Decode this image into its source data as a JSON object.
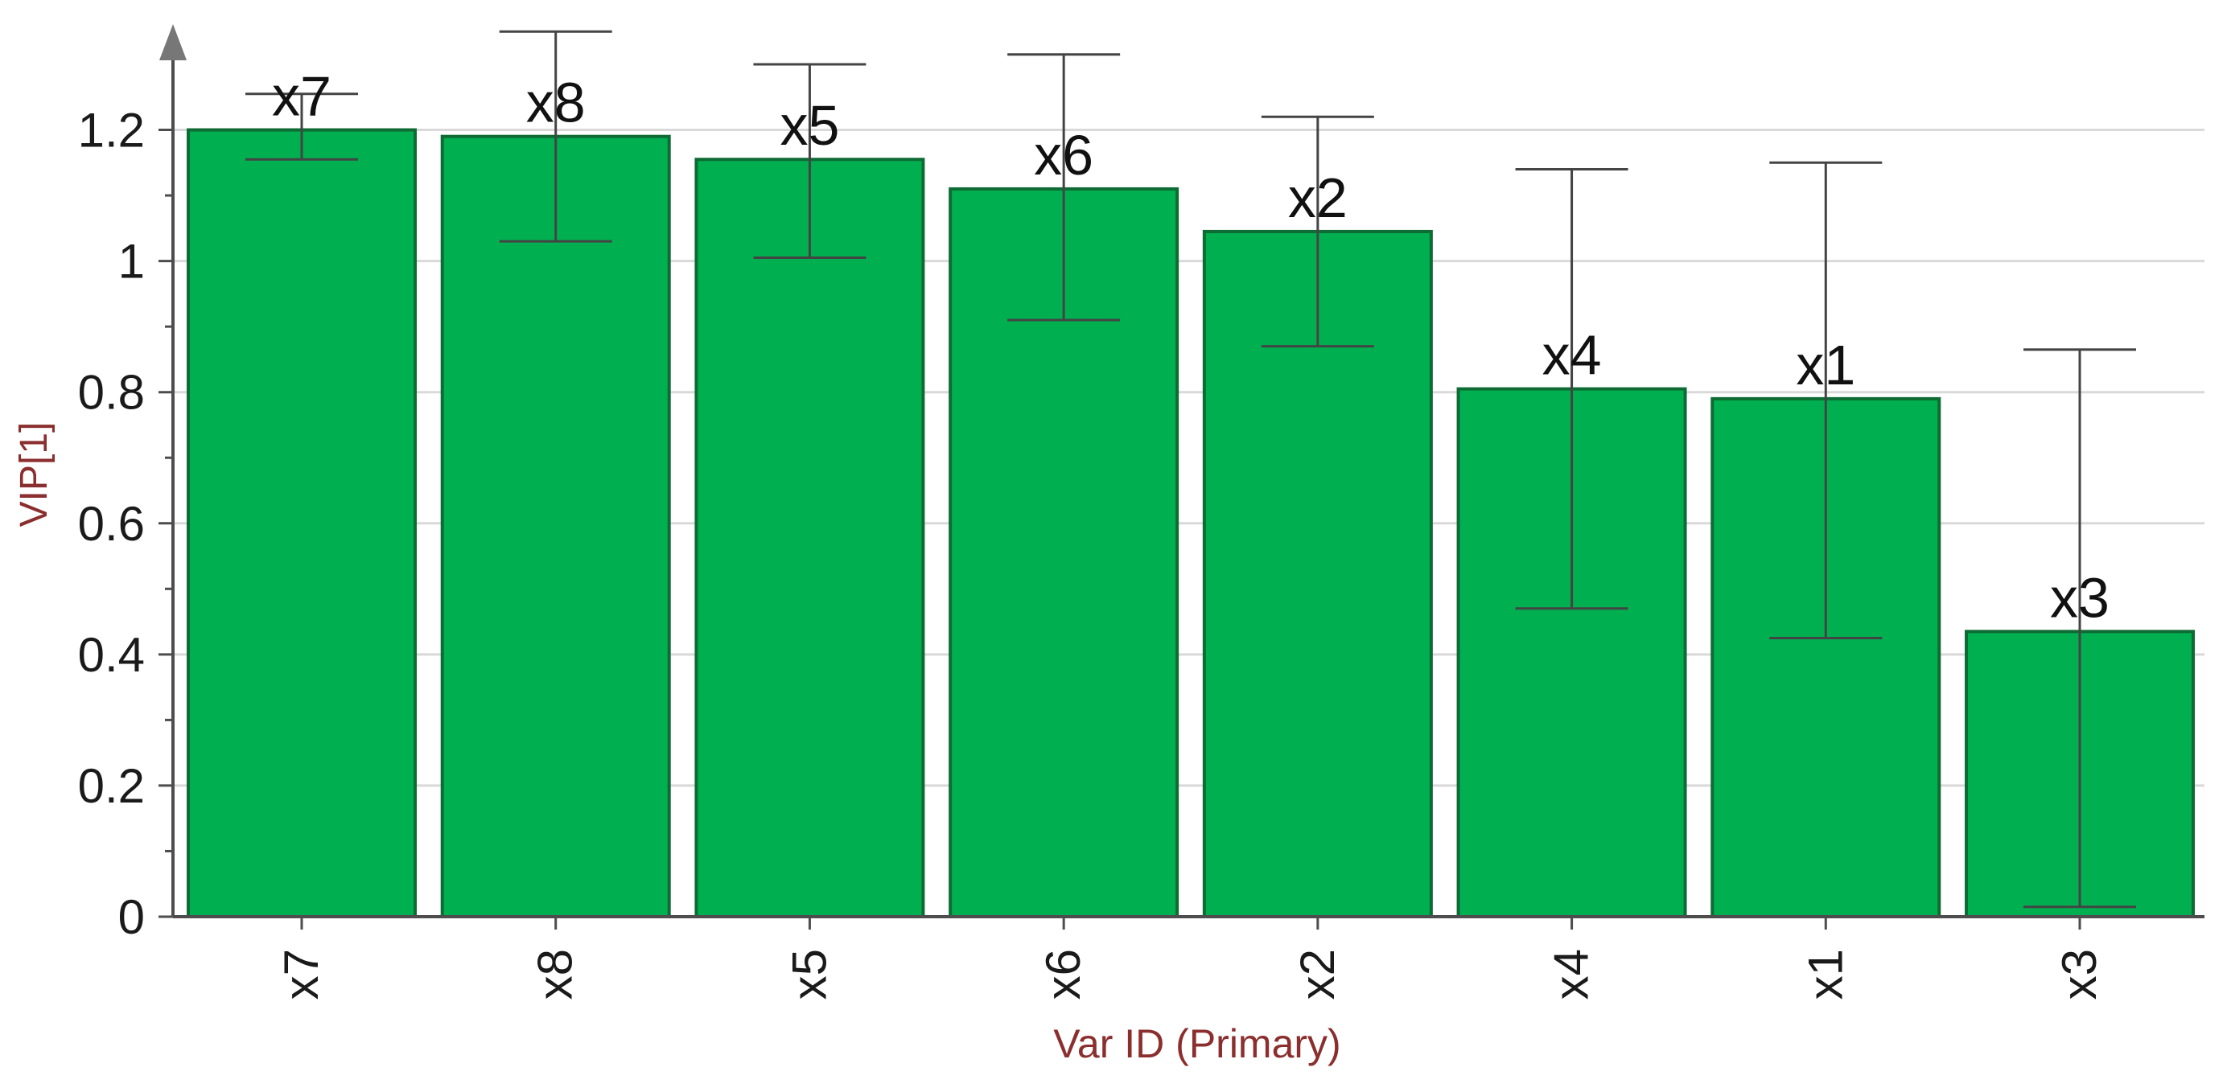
{
  "chart_data": {
    "type": "bar",
    "xlabel": "Var ID (Primary)",
    "ylabel": "VIP[1]",
    "ylim": [
      0,
      1.3
    ],
    "yticks": [
      "0",
      "0.2",
      "0.4",
      "0.6",
      "0.8",
      "1",
      "1.2"
    ],
    "grid": true,
    "categories": [
      "x7",
      "x8",
      "x5",
      "x6",
      "x2",
      "x4",
      "x1",
      "x3"
    ],
    "values": [
      1.2,
      1.19,
      1.155,
      1.11,
      1.045,
      0.805,
      0.79,
      0.435
    ],
    "error_low": [
      1.155,
      1.03,
      1.005,
      0.91,
      0.87,
      0.47,
      0.425,
      0.015
    ],
    "error_high": [
      1.255,
      1.35,
      1.3,
      1.315,
      1.22,
      1.14,
      1.15,
      0.865
    ],
    "bar_labels": [
      "x7",
      "x8",
      "x5",
      "x6",
      "x2",
      "x4",
      "x1",
      "x3"
    ],
    "colors": {
      "bar_fill": "#00b050",
      "bar_stroke": "#0e6b34",
      "grid": "#d9d9d9",
      "axis": "#4d4d4d",
      "error_bar": "#444444",
      "axis_title": "#8b2e2e"
    }
  }
}
